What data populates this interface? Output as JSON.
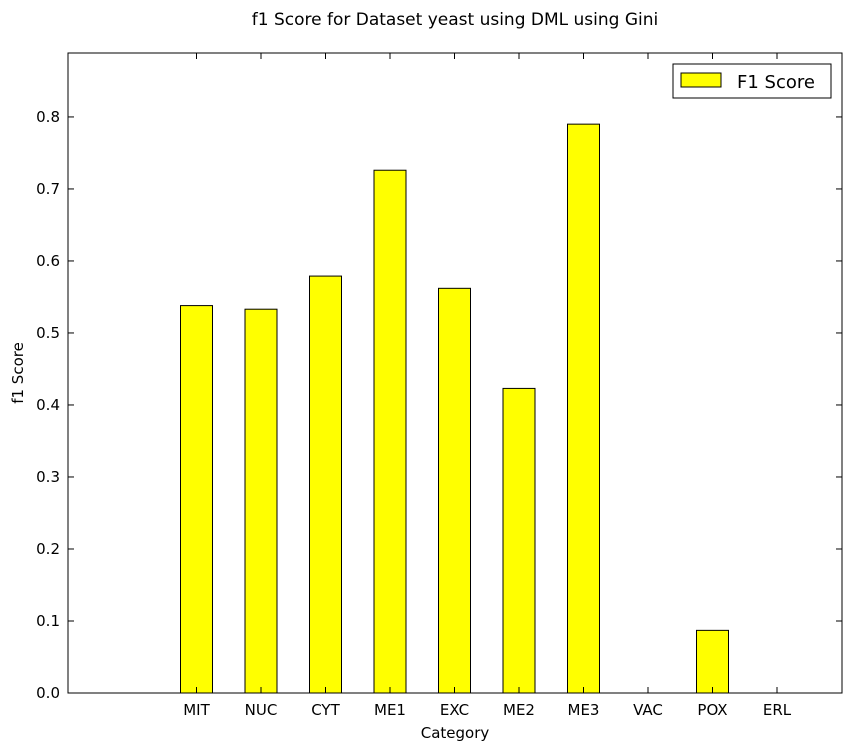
{
  "chart_data": {
    "type": "bar",
    "title": "f1 Score for Dataset yeast using DML using Gini",
    "xlabel": "Category",
    "ylabel": "f1 Score",
    "categories": [
      "MIT",
      "NUC",
      "CYT",
      "ME1",
      "EXC",
      "ME2",
      "ME3",
      "VAC",
      "POX",
      "ERL"
    ],
    "series": [
      {
        "name": "F1 Score",
        "color": "#ffff00",
        "values": [
          0.538,
          0.533,
          0.579,
          0.726,
          0.562,
          0.423,
          0.79,
          0.0,
          0.087,
          0.0
        ]
      }
    ],
    "ylim": [
      0.0,
      0.8888
    ],
    "yticks": [
      "0.0",
      "0.1",
      "0.2",
      "0.3",
      "0.4",
      "0.5",
      "0.6",
      "0.7",
      "0.8"
    ],
    "grid": false,
    "legend_position": "top-right"
  }
}
